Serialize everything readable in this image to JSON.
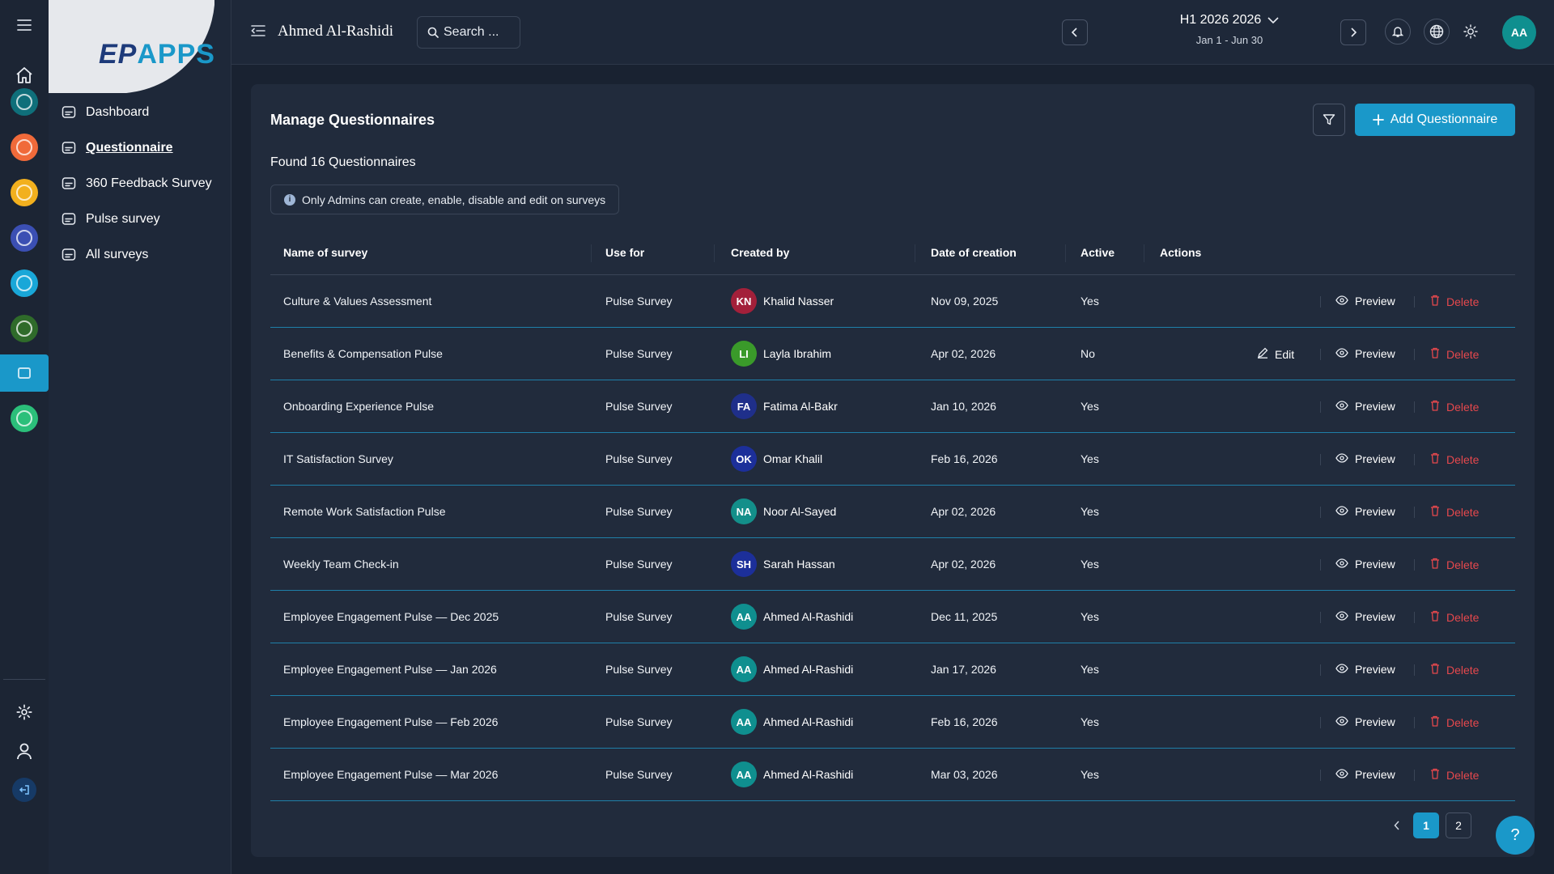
{
  "rail": {
    "apps": [
      {
        "name": "home",
        "color": "#1c2534"
      },
      {
        "name": "goals-app",
        "color": "#0f6f7a"
      },
      {
        "name": "review-app",
        "color": "#f06a3a"
      },
      {
        "name": "recognition-app",
        "color": "#f2b01e"
      },
      {
        "name": "performance-app",
        "color": "#3b4fb3"
      },
      {
        "name": "time-app",
        "color": "#19a7d8"
      },
      {
        "name": "growth-app",
        "color": "#2f6b2a"
      },
      {
        "name": "survey-app",
        "color": "#1a98c9"
      },
      {
        "name": "reports-app",
        "color": "#2bbf7a"
      }
    ]
  },
  "logo": {
    "prefix": "EP",
    "text": "APPS"
  },
  "sidebar": {
    "items": [
      {
        "label": "Dashboard",
        "icon": "dashboard-icon"
      },
      {
        "label": "Questionnaire",
        "icon": "questionnaire-icon",
        "active": true
      },
      {
        "label": "360 Feedback Survey",
        "icon": "feedback-360-icon"
      },
      {
        "label": "Pulse survey",
        "icon": "pulse-icon"
      },
      {
        "label": "All surveys",
        "icon": "all-surveys-icon"
      }
    ]
  },
  "topbar": {
    "user_name": "Ahmed Al-Rashidi",
    "search_placeholder": "Search ...",
    "period_title": "H1 2026 2026",
    "period_range": "Jan 1 - Jun 30",
    "avatar_initials": "AA"
  },
  "main": {
    "title": "Manage Questionnaires",
    "found": "Found 16 Questionnaires",
    "notice": "Only Admins can create, enable, disable and edit on surveys",
    "add_button": "Add Questionnaire",
    "columns": [
      "Name of survey",
      "Use for",
      "Created by",
      "Date of creation",
      "Active",
      "Actions"
    ],
    "actions": {
      "edit": "Edit",
      "preview": "Preview",
      "delete": "Delete"
    },
    "rows": [
      {
        "name": "Culture & Values Assessment",
        "use_for": "Pulse Survey",
        "initials": "KN",
        "creator": "Khalid Nasser",
        "avatar_color": "#a3203a",
        "date": "Nov 09, 2025",
        "active": "Yes",
        "editable": false
      },
      {
        "name": "Benefits & Compensation Pulse",
        "use_for": "Pulse Survey",
        "initials": "LI",
        "creator": "Layla Ibrahim",
        "avatar_color": "#3a9a2a",
        "date": "Apr 02, 2026",
        "active": "No",
        "editable": true
      },
      {
        "name": "Onboarding Experience Pulse",
        "use_for": "Pulse Survey",
        "initials": "FA",
        "creator": "Fatima Al-Bakr",
        "avatar_color": "#1f2f8a",
        "date": "Jan 10, 2026",
        "active": "Yes",
        "editable": false
      },
      {
        "name": "IT Satisfaction Survey",
        "use_for": "Pulse Survey",
        "initials": "OK",
        "creator": "Omar Khalil",
        "avatar_color": "#1c2f9a",
        "date": "Feb 16, 2026",
        "active": "Yes",
        "editable": false
      },
      {
        "name": "Remote Work Satisfaction Pulse",
        "use_for": "Pulse Survey",
        "initials": "NA",
        "creator": "Noor Al-Sayed",
        "avatar_color": "#138f8a",
        "date": "Apr 02, 2026",
        "active": "Yes",
        "editable": false
      },
      {
        "name": "Weekly Team Check-in",
        "use_for": "Pulse Survey",
        "initials": "SH",
        "creator": "Sarah Hassan",
        "avatar_color": "#1c2f9a",
        "date": "Apr 02, 2026",
        "active": "Yes",
        "editable": false
      },
      {
        "name": "Employee Engagement Pulse — Dec 2025",
        "use_for": "Pulse Survey",
        "initials": "AA",
        "creator": "Ahmed Al-Rashidi",
        "avatar_color": "#0f8f8f",
        "date": "Dec 11, 2025",
        "active": "Yes",
        "editable": false
      },
      {
        "name": "Employee Engagement Pulse — Jan 2026",
        "use_for": "Pulse Survey",
        "initials": "AA",
        "creator": "Ahmed Al-Rashidi",
        "avatar_color": "#0f8f8f",
        "date": "Jan 17, 2026",
        "active": "Yes",
        "editable": false
      },
      {
        "name": "Employee Engagement Pulse — Feb 2026",
        "use_for": "Pulse Survey",
        "initials": "AA",
        "creator": "Ahmed Al-Rashidi",
        "avatar_color": "#0f8f8f",
        "date": "Feb 16, 2026",
        "active": "Yes",
        "editable": false
      },
      {
        "name": "Employee Engagement Pulse — Mar 2026",
        "use_for": "Pulse Survey",
        "initials": "AA",
        "creator": "Ahmed Al-Rashidi",
        "avatar_color": "#0f8f8f",
        "date": "Mar 03, 2026",
        "active": "Yes",
        "editable": false
      }
    ],
    "pagination": {
      "pages": [
        "1",
        "2"
      ],
      "current": "1"
    }
  },
  "help_label": "?",
  "colors": {
    "accent": "#1a98c9",
    "danger": "#e5484d",
    "background": "#192231",
    "card": "#212b3c"
  }
}
